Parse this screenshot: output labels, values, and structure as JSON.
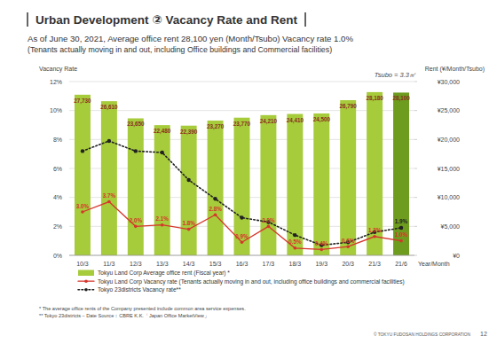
{
  "chart_data": {
    "type": "bar",
    "title": "Urban Development ② Vacancy Rate and Rent",
    "subtitle": [
      "As of June 30, 2021, Average office rent 28,100 yen (Month/Tsubo) Vacancy rate 1.0%",
      "(Tenants actually moving in and out, including Office buildings and Commercial facilities)"
    ],
    "y_label": "Vacancy Rate",
    "y2_label": "Rent (¥/Month/Tsubo)",
    "x_label": "Year/Month",
    "annotations": [
      "Tsubo = 3.3㎡"
    ],
    "footnotes": [
      "* The average office rents of the Company presented include common area service expenses.",
      "** Tokyo 23districts－Date Source：CBRE K.K.「Japan Office MarketView」"
    ],
    "footer": "© TOKYU FUDOSAN HOLDINGS CORPORATION",
    "page": "12",
    "categories": [
      "10/3",
      "11/3",
      "12/3",
      "13/3",
      "14/3",
      "15/3",
      "16/3",
      "17/3",
      "18/3",
      "19/3",
      "20/3",
      "21/3",
      "21/6"
    ],
    "ylim": [
      0,
      12
    ],
    "yticks": [
      {
        "value": 0,
        "label": "0%"
      },
      {
        "value": 2,
        "label": "2%"
      },
      {
        "value": 4,
        "label": "4%"
      },
      {
        "value": 6,
        "label": "6%"
      },
      {
        "value": 8,
        "label": "8%"
      },
      {
        "value": 10,
        "label": "10%"
      },
      {
        "value": 12,
        "label": "12%"
      }
    ],
    "y2lim": [
      0,
      30000
    ],
    "y2ticks": [
      {
        "value": 0,
        "label": "¥0"
      },
      {
        "value": 5000,
        "label": "¥5,000"
      },
      {
        "value": 10000,
        "label": "¥10,000"
      },
      {
        "value": 15000,
        "label": "¥15,000"
      },
      {
        "value": 20000,
        "label": "¥20,000"
      },
      {
        "value": 25000,
        "label": "¥25,000"
      },
      {
        "value": 30000,
        "label": "¥30,000"
      }
    ],
    "grid": true,
    "legend": "bottom",
    "series": [
      {
        "name": "Tokyu Land Corp Average office rent (Fiscal year) *",
        "type": "bar",
        "axis": "y2",
        "colors": [
          "#a6cb3b",
          "#a6cb3b",
          "#a6cb3b",
          "#a6cb3b",
          "#a6cb3b",
          "#a6cb3b",
          "#a6cb3b",
          "#a6cb3b",
          "#a6cb3b",
          "#a6cb3b",
          "#a6cb3b",
          "#a6cb3b",
          "#6e9c1f"
        ],
        "values": [
          27730,
          26610,
          23650,
          22480,
          22390,
          23270,
          23770,
          24210,
          24410,
          24500,
          26790,
          28180,
          28100
        ],
        "value_labels": [
          "27,730",
          "26,610",
          "23,650",
          "22,480",
          "22,390",
          "23,270",
          "23,770",
          "24,210",
          "24,410",
          "24,500",
          "26,790",
          "28,180",
          "28,100"
        ],
        "data_labels": true
      },
      {
        "name": "Tokyu Land Corp Vacancy rate (Tenants actually moving in and out, including office buildings and commercial facilities)",
        "type": "line",
        "color": "#d6352b",
        "marker": "circle",
        "line_style": "solid",
        "values": [
          3.0,
          3.7,
          2.0,
          2.1,
          1.8,
          2.8,
          0.9,
          2.0,
          0.5,
          0.4,
          0.6,
          1.3,
          1.0
        ],
        "value_labels": [
          "3.0%",
          "3.7%",
          "2.0%",
          "2.1%",
          "1.8%",
          "2.8%",
          "0.9%",
          "2.0%",
          "0.5%",
          "0.4%",
          "0.6%",
          "1.3%",
          "1.0%"
        ],
        "data_labels": true
      },
      {
        "name": "Tokyo 23districts Vacancy rate**",
        "type": "line",
        "color": "#222222",
        "marker": "circle",
        "line_style": "dotted",
        "values": [
          7.2,
          7.9,
          7.2,
          7.1,
          5.2,
          3.9,
          2.6,
          2.3,
          1.4,
          0.7,
          0.9,
          1.6,
          1.9
        ],
        "value_labels": [
          null,
          null,
          null,
          null,
          null,
          null,
          null,
          null,
          null,
          null,
          null,
          null,
          "1.9%"
        ],
        "data_labels": true
      }
    ]
  }
}
